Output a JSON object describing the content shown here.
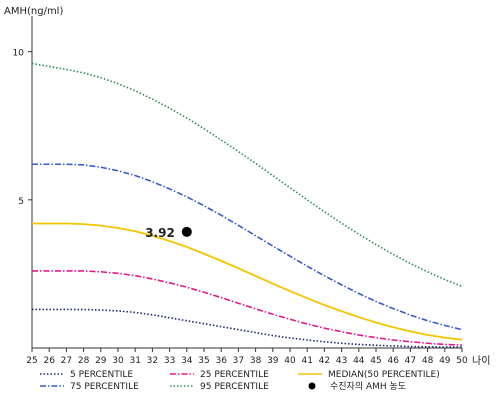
{
  "chart_data": {
    "type": "line",
    "ylabel": "AMH(ng/ml)",
    "xlabel": "나이",
    "x": [
      25,
      26,
      27,
      28,
      29,
      30,
      31,
      32,
      33,
      34,
      35,
      36,
      37,
      38,
      39,
      40,
      41,
      42,
      43,
      44,
      45,
      46,
      47,
      48,
      49,
      50
    ],
    "xlim": [
      25,
      50
    ],
    "ylim": [
      0,
      11
    ],
    "y_ticks": [
      5,
      10
    ],
    "grid": false,
    "legend_position": "bottom",
    "series": [
      {
        "name": "5 PERCENTILE",
        "color": "#1a2a6c",
        "dash": "dotted",
        "values": [
          1.3,
          1.3,
          1.3,
          1.3,
          1.28,
          1.25,
          1.2,
          1.12,
          1.02,
          0.92,
          0.82,
          0.72,
          0.62,
          0.52,
          0.42,
          0.34,
          0.27,
          0.21,
          0.16,
          0.12,
          0.09,
          0.07,
          0.05,
          0.04,
          0.03,
          0.03
        ]
      },
      {
        "name": "25 PERCENTILE",
        "color": "#e6178b",
        "dash": "dashdot",
        "values": [
          2.6,
          2.6,
          2.6,
          2.6,
          2.57,
          2.52,
          2.44,
          2.33,
          2.2,
          2.05,
          1.88,
          1.7,
          1.51,
          1.32,
          1.14,
          0.97,
          0.81,
          0.67,
          0.55,
          0.44,
          0.35,
          0.27,
          0.21,
          0.16,
          0.12,
          0.1
        ]
      },
      {
        "name": "MEDIAN(50 PERCENTILE)",
        "color": "#f5c400",
        "dash": "solid",
        "values": [
          4.2,
          4.2,
          4.2,
          4.18,
          4.13,
          4.05,
          3.94,
          3.79,
          3.61,
          3.41,
          3.18,
          2.94,
          2.69,
          2.43,
          2.17,
          1.92,
          1.68,
          1.45,
          1.24,
          1.04,
          0.86,
          0.7,
          0.56,
          0.44,
          0.35,
          0.28
        ]
      },
      {
        "name": "75 PERCENTILE",
        "color": "#3a5cc9",
        "dash": "dashdot",
        "values": [
          6.2,
          6.2,
          6.2,
          6.18,
          6.1,
          5.98,
          5.82,
          5.61,
          5.37,
          5.1,
          4.8,
          4.48,
          4.14,
          3.79,
          3.44,
          3.1,
          2.76,
          2.44,
          2.13,
          1.84,
          1.57,
          1.33,
          1.11,
          0.92,
          0.76,
          0.62
        ]
      },
      {
        "name": "95 PERCENTILE",
        "color": "#2e8b57",
        "dash": "dotted",
        "values": [
          9.6,
          9.5,
          9.4,
          9.28,
          9.12,
          8.92,
          8.68,
          8.4,
          8.09,
          7.76,
          7.4,
          7.02,
          6.63,
          6.23,
          5.82,
          5.41,
          5.0,
          4.6,
          4.21,
          3.84,
          3.49,
          3.16,
          2.85,
          2.57,
          2.31,
          2.08
        ]
      }
    ],
    "point": {
      "name": "수진자의 AMH 농도",
      "x": 34,
      "y": 3.92,
      "label": "3.92",
      "color": "#000000"
    }
  }
}
